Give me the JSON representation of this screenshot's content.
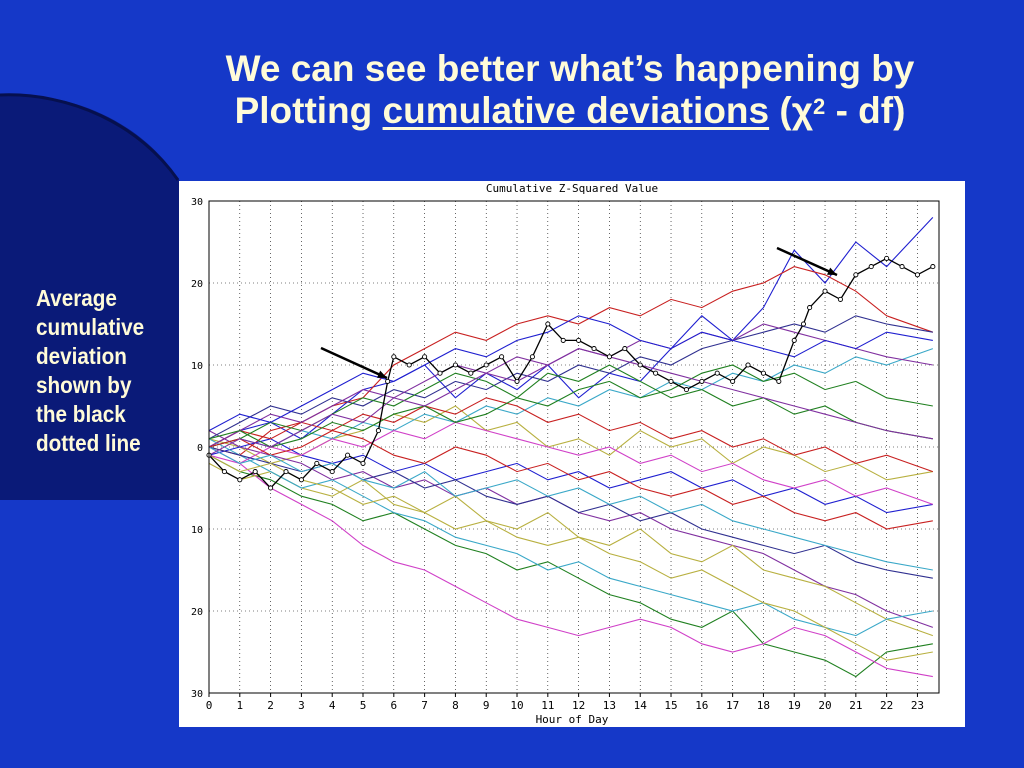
{
  "slide": {
    "title_line1": "We can see better what’s happening by",
    "title_line2_prefix": "Plotting ",
    "title_line2_link": "cumulative deviations",
    "title_line2_open": " (",
    "chi_symbol": "χ",
    "chi_exponent": "2",
    "title_line2_suffix": " - df)",
    "side_note": [
      "Average",
      "cumulative",
      "deviation",
      "shown by",
      "the black",
      "dotted line"
    ]
  },
  "colors": {
    "background": "#1538c8",
    "title_text": "#fffbd8",
    "series_palette": [
      "#1f1fd0",
      "#c82020",
      "#b8b040",
      "#208020",
      "#3aa8c8",
      "#8030a0",
      "#d040c8",
      "#303090"
    ],
    "average_line": "#000000"
  },
  "chart_data": {
    "type": "line",
    "title": "Cumulative Z-Squared Value",
    "xlabel": "Hour of Day",
    "ylabel": "",
    "x_ticks": [
      "0",
      "1",
      "2",
      "3",
      "4",
      "5",
      "6",
      "7",
      "8",
      "9",
      "10",
      "11",
      "12",
      "13",
      "14",
      "15",
      "16",
      "17",
      "18",
      "19",
      "20",
      "21",
      "22",
      "23"
    ],
    "y_ticks": [
      "30",
      "20",
      "10",
      "0",
      "10",
      "20",
      "30"
    ],
    "xlim": [
      0,
      23.7
    ],
    "ylim": [
      -30,
      30
    ],
    "grid": true,
    "average_series": {
      "name": "",
      "x": [
        0,
        0.5,
        1,
        1.5,
        2,
        2.5,
        3,
        3.5,
        4,
        4.5,
        5,
        5.5,
        5.8,
        6,
        6.5,
        7,
        7.5,
        8,
        8.5,
        9,
        9.5,
        10,
        10.5,
        11,
        11.5,
        12,
        12.5,
        13,
        13.5,
        14,
        14.5,
        15,
        15.5,
        16,
        16.5,
        17,
        17.5,
        18,
        18.5,
        19,
        19.3,
        19.5,
        20,
        20.5,
        21,
        21.5,
        22,
        22.5,
        23,
        23.5
      ],
      "y": [
        -1,
        -3,
        -4,
        -3,
        -5,
        -3,
        -4,
        -2,
        -3,
        -1,
        -2,
        2,
        8,
        11,
        10,
        11,
        9,
        10,
        9,
        10,
        11,
        8,
        11,
        15,
        13,
        13,
        12,
        11,
        12,
        10,
        9,
        8,
        7,
        8,
        9,
        8,
        10,
        9,
        8,
        13,
        15,
        17,
        19,
        18,
        21,
        22,
        23,
        22,
        21,
        22
      ]
    },
    "series": [
      {
        "x": [
          0,
          1,
          2,
          3,
          4,
          5,
          6,
          7,
          8,
          9,
          10,
          11,
          12,
          13,
          14,
          15,
          16,
          17,
          18,
          19,
          20,
          21,
          22,
          23.5
        ],
        "y": [
          0,
          2,
          3,
          1,
          4,
          7,
          8,
          10,
          6,
          9,
          7,
          10,
          6,
          9,
          8,
          12,
          16,
          13,
          17,
          24,
          20,
          25,
          22,
          28
        ]
      },
      {
        "x": [
          0,
          1,
          2,
          3,
          4,
          5,
          6,
          7,
          8,
          9,
          10,
          11,
          12,
          13,
          14,
          15,
          16,
          17,
          18,
          19,
          20,
          21,
          22,
          23.5
        ],
        "y": [
          0,
          -1,
          2,
          3,
          5,
          6,
          10,
          12,
          14,
          13,
          15,
          16,
          15,
          17,
          16,
          18,
          17,
          19,
          20,
          22,
          21,
          19,
          16,
          14
        ]
      },
      {
        "x": [
          0,
          1,
          2,
          3,
          4,
          5,
          6,
          7,
          8,
          9,
          10,
          11,
          12,
          13,
          14,
          15,
          16,
          17,
          18,
          19,
          20,
          21,
          22,
          23.5
        ],
        "y": [
          1,
          0,
          -2,
          -1,
          1,
          2,
          4,
          3,
          5,
          2,
          3,
          0,
          1,
          -1,
          2,
          0,
          1,
          -2,
          0,
          -1,
          -3,
          -2,
          -4,
          -3
        ]
      },
      {
        "x": [
          0,
          1,
          2,
          3,
          4,
          5,
          6,
          7,
          8,
          9,
          10,
          11,
          12,
          13,
          14,
          15,
          16,
          17,
          18,
          19,
          20,
          21,
          22,
          23.5
        ],
        "y": [
          -1,
          -3,
          -4,
          -6,
          -7,
          -9,
          -8,
          -10,
          -12,
          -13,
          -15,
          -14,
          -16,
          -18,
          -19,
          -21,
          -22,
          -20,
          -24,
          -25,
          -26,
          -28,
          -25,
          -24
        ]
      },
      {
        "x": [
          0,
          1,
          2,
          3,
          4,
          5,
          6,
          7,
          8,
          9,
          10,
          11,
          12,
          13,
          14,
          15,
          16,
          17,
          18,
          19,
          20,
          21,
          22,
          23.5
        ],
        "y": [
          0,
          1,
          0,
          2,
          1,
          3,
          2,
          4,
          3,
          5,
          4,
          6,
          5,
          7,
          6,
          8,
          7,
          9,
          8,
          10,
          9,
          11,
          10,
          12
        ]
      },
      {
        "x": [
          0,
          1,
          2,
          3,
          4,
          5,
          6,
          7,
          8,
          9,
          10,
          11,
          12,
          13,
          14,
          15,
          16,
          17,
          18,
          19,
          20,
          21,
          22,
          23.5
        ],
        "y": [
          2,
          0,
          -1,
          -2,
          -4,
          -3,
          -5,
          -4,
          -6,
          -5,
          -7,
          -6,
          -8,
          -9,
          -8,
          -10,
          -11,
          -12,
          -13,
          -15,
          -17,
          -18,
          -20,
          -22
        ]
      },
      {
        "x": [
          0,
          1,
          2,
          3,
          4,
          5,
          6,
          7,
          8,
          9,
          10,
          11,
          12,
          13,
          14,
          15,
          16,
          17,
          18,
          19,
          20,
          21,
          22,
          23.5
        ],
        "y": [
          0,
          -2,
          -5,
          -7,
          -9,
          -12,
          -14,
          -15,
          -17,
          -19,
          -21,
          -22,
          -23,
          -22,
          -21,
          -22,
          -24,
          -25,
          -24,
          -22,
          -23,
          -25,
          -27,
          -28
        ]
      },
      {
        "x": [
          0,
          1,
          2,
          3,
          4,
          5,
          6,
          7,
          8,
          9,
          10,
          11,
          12,
          13,
          14,
          15,
          16,
          17,
          18,
          19,
          20,
          21,
          22,
          23.5
        ],
        "y": [
          1,
          3,
          5,
          4,
          6,
          5,
          7,
          6,
          8,
          7,
          9,
          8,
          10,
          9,
          11,
          10,
          12,
          13,
          14,
          15,
          14,
          16,
          15,
          14
        ]
      },
      {
        "x": [
          0,
          1,
          2,
          3,
          4,
          5,
          6,
          7,
          8,
          9,
          10,
          11,
          12,
          13,
          14,
          15,
          16,
          17,
          18,
          19,
          20,
          21,
          22,
          23.5
        ],
        "y": [
          -1,
          0,
          1,
          -1,
          -2,
          -1,
          -3,
          -2,
          -4,
          -3,
          -2,
          -4,
          -3,
          -5,
          -4,
          -3,
          -5,
          -4,
          -6,
          -5,
          -7,
          -6,
          -8,
          -7
        ]
      },
      {
        "x": [
          0,
          1,
          2,
          3,
          4,
          5,
          6,
          7,
          8,
          9,
          10,
          11,
          12,
          13,
          14,
          15,
          16,
          17,
          18,
          19,
          20,
          21,
          22,
          23.5
        ],
        "y": [
          0,
          2,
          1,
          3,
          2,
          4,
          3,
          5,
          4,
          6,
          5,
          3,
          4,
          2,
          3,
          1,
          2,
          0,
          1,
          -1,
          0,
          -2,
          -1,
          -3
        ]
      },
      {
        "x": [
          0,
          1,
          2,
          3,
          4,
          5,
          6,
          7,
          8,
          9,
          10,
          11,
          12,
          13,
          14,
          15,
          16,
          17,
          18,
          19,
          20,
          21,
          22,
          23.5
        ],
        "y": [
          -2,
          -4,
          -3,
          -5,
          -6,
          -4,
          -7,
          -8,
          -6,
          -9,
          -10,
          -8,
          -11,
          -12,
          -10,
          -13,
          -14,
          -12,
          -15,
          -16,
          -17,
          -19,
          -21,
          -23
        ]
      },
      {
        "x": [
          0,
          1,
          2,
          3,
          4,
          5,
          6,
          7,
          8,
          9,
          10,
          11,
          12,
          13,
          14,
          15,
          16,
          17,
          18,
          19,
          20,
          21,
          22,
          23.5
        ],
        "y": [
          0,
          1,
          3,
          2,
          4,
          6,
          5,
          7,
          9,
          8,
          6,
          9,
          8,
          10,
          8,
          6,
          7,
          5,
          6,
          4,
          5,
          3,
          2,
          1
        ]
      },
      {
        "x": [
          0,
          1,
          2,
          3,
          4,
          5,
          6,
          7,
          8,
          9,
          10,
          11,
          12,
          13,
          14,
          15,
          16,
          17,
          18,
          19,
          20,
          21,
          22,
          23.5
        ],
        "y": [
          1,
          -1,
          -3,
          -5,
          -4,
          -6,
          -8,
          -9,
          -11,
          -12,
          -13,
          -15,
          -14,
          -16,
          -17,
          -18,
          -19,
          -20,
          -19,
          -21,
          -22,
          -23,
          -21,
          -20
        ]
      },
      {
        "x": [
          0,
          1,
          2,
          3,
          4,
          5,
          6,
          7,
          8,
          9,
          10,
          11,
          12,
          13,
          14,
          15,
          16,
          17,
          18,
          19,
          20,
          21,
          22,
          23.5
        ],
        "y": [
          0,
          2,
          4,
          3,
          5,
          7,
          6,
          8,
          10,
          9,
          11,
          10,
          12,
          11,
          13,
          12,
          14,
          13,
          15,
          14,
          13,
          12,
          11,
          10
        ]
      },
      {
        "x": [
          0,
          1,
          2,
          3,
          4,
          5,
          6,
          7,
          8,
          9,
          10,
          11,
          12,
          13,
          14,
          15,
          16,
          17,
          18,
          19,
          20,
          21,
          22,
          23.5
        ],
        "y": [
          -1,
          -2,
          0,
          -1,
          1,
          0,
          2,
          1,
          3,
          2,
          1,
          0,
          -1,
          0,
          -2,
          -1,
          -3,
          -2,
          -4,
          -5,
          -4,
          -6,
          -5,
          -7
        ]
      },
      {
        "x": [
          0,
          1,
          2,
          3,
          4,
          5,
          6,
          7,
          8,
          9,
          10,
          11,
          12,
          13,
          14,
          15,
          16,
          17,
          18,
          19,
          20,
          21,
          22,
          23.5
        ],
        "y": [
          0,
          -1,
          -2,
          -3,
          -2,
          -4,
          -3,
          -5,
          -4,
          -6,
          -7,
          -6,
          -8,
          -7,
          -9,
          -8,
          -10,
          -11,
          -12,
          -13,
          -12,
          -14,
          -15,
          -16
        ]
      },
      {
        "x": [
          0,
          1,
          2,
          3,
          4,
          5,
          6,
          7,
          8,
          9,
          10,
          11,
          12,
          13,
          14,
          15,
          16,
          17,
          18,
          19,
          20,
          21,
          22,
          23.5
        ],
        "y": [
          2,
          4,
          3,
          5,
          7,
          9,
          8,
          10,
          12,
          11,
          13,
          14,
          16,
          15,
          13,
          12,
          14,
          13,
          12,
          11,
          13,
          12,
          14,
          13
        ]
      },
      {
        "x": [
          0,
          1,
          2,
          3,
          4,
          5,
          6,
          7,
          8,
          9,
          10,
          11,
          12,
          13,
          14,
          15,
          16,
          17,
          18,
          19,
          20,
          21,
          22,
          23.5
        ],
        "y": [
          0,
          1,
          -1,
          0,
          2,
          1,
          -1,
          -2,
          0,
          -1,
          -3,
          -2,
          -4,
          -3,
          -5,
          -6,
          -5,
          -7,
          -6,
          -8,
          -9,
          -8,
          -10,
          -9
        ]
      },
      {
        "x": [
          0,
          1,
          2,
          3,
          4,
          5,
          6,
          7,
          8,
          9,
          10,
          11,
          12,
          13,
          14,
          15,
          16,
          17,
          18,
          19,
          20,
          21,
          22,
          23.5
        ],
        "y": [
          -1,
          -3,
          -2,
          -4,
          -5,
          -7,
          -6,
          -8,
          -10,
          -9,
          -11,
          -12,
          -11,
          -13,
          -14,
          -16,
          -15,
          -17,
          -19,
          -20,
          -22,
          -24,
          -26,
          -25
        ]
      },
      {
        "x": [
          0,
          1,
          2,
          3,
          4,
          5,
          6,
          7,
          8,
          9,
          10,
          11,
          12,
          13,
          14,
          15,
          16,
          17,
          18,
          19,
          20,
          21,
          22,
          23.5
        ],
        "y": [
          1,
          2,
          0,
          1,
          3,
          2,
          4,
          5,
          3,
          4,
          6,
          5,
          7,
          8,
          6,
          7,
          9,
          10,
          8,
          9,
          7,
          8,
          6,
          5
        ]
      },
      {
        "x": [
          0,
          1,
          2,
          3,
          4,
          5,
          6,
          7,
          8,
          9,
          10,
          11,
          12,
          13,
          14,
          15,
          16,
          17,
          18,
          19,
          20,
          21,
          22,
          23.5
        ],
        "y": [
          0,
          -2,
          -1,
          -3,
          -2,
          -4,
          -5,
          -3,
          -6,
          -5,
          -4,
          -6,
          -5,
          -7,
          -6,
          -8,
          -7,
          -9,
          -10,
          -11,
          -12,
          -13,
          -14,
          -15
        ]
      },
      {
        "x": [
          0,
          1,
          2,
          3,
          4,
          5,
          6,
          7,
          8,
          9,
          10,
          11,
          12,
          13,
          14,
          15,
          16,
          17,
          18,
          19,
          20,
          21,
          22,
          23.5
        ],
        "y": [
          -1,
          1,
          0,
          2,
          4,
          3,
          6,
          5,
          7,
          9,
          8,
          10,
          12,
          11,
          10,
          9,
          8,
          7,
          6,
          5,
          4,
          3,
          2,
          1
        ]
      }
    ]
  }
}
